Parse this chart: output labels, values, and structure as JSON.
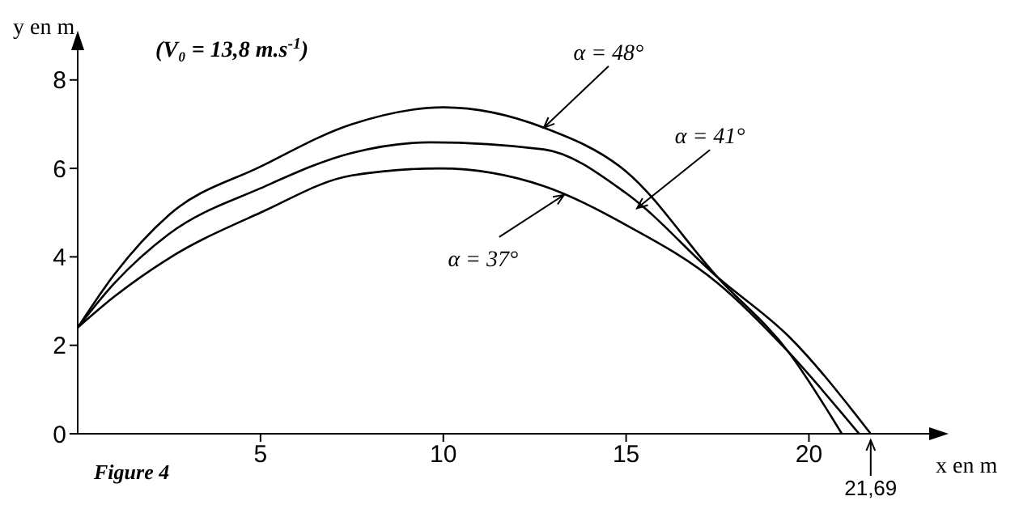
{
  "chart_data": {
    "type": "line",
    "xlabel": "x en m",
    "ylabel": "y en m",
    "xlim": [
      0,
      23.2
    ],
    "ylim": [
      0,
      8.6
    ],
    "xticks": [
      5,
      10,
      15,
      20
    ],
    "yticks": [
      0,
      2,
      4,
      6,
      8
    ],
    "grid": false,
    "legend": false,
    "marker": "none",
    "line_style": "solid",
    "series": [
      {
        "color": "#000000",
        "x": [
          0,
          1,
          2.5,
          5,
          7.5,
          10,
          12.75,
          15,
          17.5,
          19.45,
          20.9
        ],
        "values": [
          2.4,
          3.6,
          4.95,
          6.04,
          7.0,
          7.38,
          6.92,
          5.93,
          3.54,
          1.84,
          0
        ]
      },
      {
        "color": "#000000",
        "x": [
          0,
          1,
          2.5,
          5,
          7.5,
          9.66,
          12.75,
          15,
          17.5,
          19.45,
          21.69
        ],
        "values": [
          2.4,
          3.4,
          4.52,
          5.55,
          6.35,
          6.59,
          6.43,
          5.44,
          3.54,
          2.2,
          0
        ]
      },
      {
        "color": "#000000",
        "x": [
          0,
          1,
          2.5,
          5,
          7.5,
          9.9,
          12.75,
          15,
          17.5,
          19.45,
          21.37
        ],
        "values": [
          2.4,
          3.1,
          3.97,
          5.0,
          5.84,
          6.0,
          5.6,
          4.72,
          3.41,
          1.84,
          0
        ]
      }
    ],
    "annotations": [
      "(V₀ = 13,8 m.s$^{-1}$)",
      "Figure 4",
      {
        "text": "α = 48°",
        "x": 12.75,
        "y": 6.92
      },
      {
        "text": "α = 41°",
        "x": 15.3,
        "y": 5.1
      },
      {
        "text": "α = 37°",
        "x": 13.3,
        "y": 5.4
      },
      {
        "text": "21,69",
        "x": 21.69,
        "y": 0
      }
    ]
  }
}
